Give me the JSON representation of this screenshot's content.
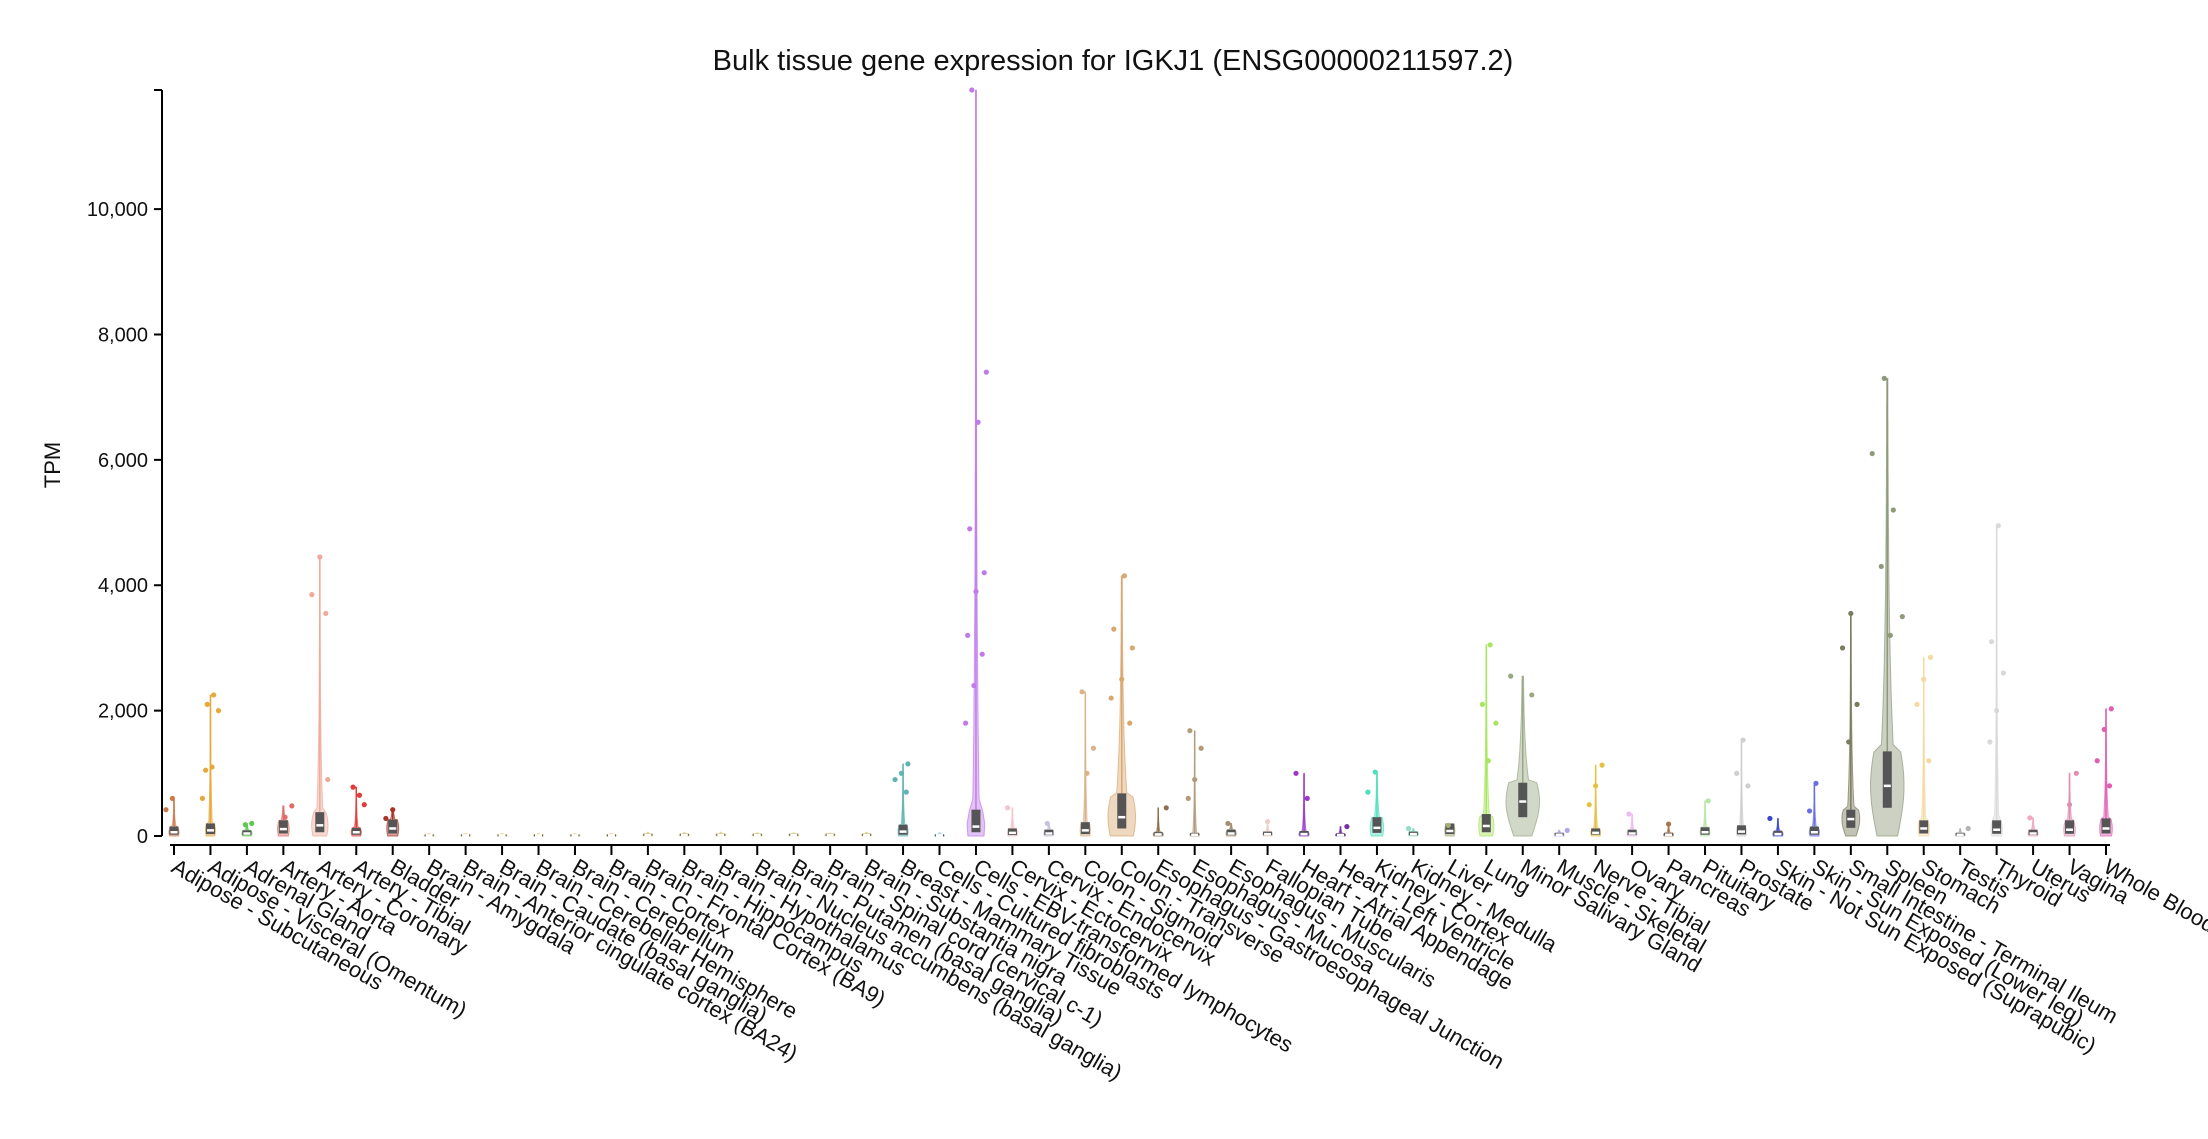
{
  "chart_data": {
    "type": "violin",
    "title": "Bulk tissue gene expression for IGKJ1 (ENSG00000211597.2)",
    "ylabel": "TPM",
    "xlabel": "",
    "ylim": [
      0,
      11900
    ],
    "yticks": [
      0,
      2000,
      4000,
      6000,
      8000,
      10000
    ],
    "ytick_labels": [
      "0",
      "2,000",
      "4,000",
      "6,000",
      "8,000",
      "10,000"
    ],
    "grid": false,
    "legend": "none",
    "categories": [
      "Adipose - Subcutaneous",
      "Adipose - Visceral (Omentum)",
      "Adrenal Gland",
      "Artery - Aorta",
      "Artery - Coronary",
      "Artery - Tibial",
      "Bladder",
      "Brain - Amygdala",
      "Brain - Anterior cingulate cortex (BA24)",
      "Brain - Caudate (basal ganglia)",
      "Brain - Cerebellar Hemisphere",
      "Brain - Cerebellum",
      "Brain - Cortex",
      "Brain - Frontal Cortex (BA9)",
      "Brain - Hippocampus",
      "Brain - Hypothalamus",
      "Brain - Nucleus accumbens (basal ganglia)",
      "Brain - Putamen (basal ganglia)",
      "Brain - Spinal cord (cervical c-1)",
      "Brain - Substantia nigra",
      "Breast - Mammary Tissue",
      "Cells - Cultured fibroblasts",
      "Cells - EBV-transformed lymphocytes",
      "Cervix - Ectocervix",
      "Cervix - Endocervix",
      "Colon - Sigmoid",
      "Colon - Transverse",
      "Esophagus - Gastroesophageal Junction",
      "Esophagus - Mucosa",
      "Esophagus - Muscularis",
      "Fallopian Tube",
      "Heart - Atrial Appendage",
      "Heart - Left Ventricle",
      "Kidney - Cortex",
      "Kidney - Medulla",
      "Liver",
      "Lung",
      "Minor Salivary Gland",
      "Muscle - Skeletal",
      "Nerve - Tibial",
      "Ovary",
      "Pancreas",
      "Pituitary",
      "Prostate",
      "Skin - Not Sun Exposed (Suprapubic)",
      "Skin - Sun Exposed (Lower leg)",
      "Small Intestine - Terminal Ileum",
      "Spleen",
      "Stomach",
      "Testis",
      "Thyroid",
      "Uterus",
      "Vagina",
      "Whole Blood"
    ],
    "colors": [
      "#cc7a4d",
      "#e6a83a",
      "#5cc84f",
      "#e06b6b",
      "#eeaa99",
      "#e03c3c",
      "#a83228",
      "#e6d27a",
      "#e6d27a",
      "#e6d27a",
      "#e6d27a",
      "#e6d27a",
      "#e6d27a",
      "#e6d27a",
      "#e6d27a",
      "#e6d27a",
      "#e6d27a",
      "#e6d27a",
      "#e6d27a",
      "#e6d27a",
      "#5fb3b3",
      "#8ecfe6",
      "#c07be8",
      "#f2c4cc",
      "#c9c0e6",
      "#d9b48a",
      "#d9a870",
      "#8f6f4d",
      "#b39b7a",
      "#a38e6e",
      "#eecfc4",
      "#9b38c9",
      "#7a2fa6",
      "#4ee0bd",
      "#8fe0c4",
      "#a8b07a",
      "#a8e65f",
      "#9aa885",
      "#b3a6ea",
      "#e6c043",
      "#f0b8f0",
      "#a8754d",
      "#b8e6a8",
      "#cfcfcf",
      "#3a46c9",
      "#6b6fe6",
      "#7a7a5c",
      "#8f9a7a",
      "#f5d9a0",
      "#b3b3b3",
      "#d9d9d9",
      "#f0a8c4",
      "#e08fb3",
      "#e05fb3"
    ],
    "median": [
      60,
      90,
      40,
      110,
      170,
      60,
      120,
      10,
      10,
      10,
      10,
      10,
      10,
      15,
      15,
      15,
      15,
      15,
      15,
      15,
      70,
      10,
      150,
      50,
      40,
      90,
      300,
      25,
      20,
      40,
      30,
      30,
      15,
      130,
      30,
      80,
      160,
      550,
      20,
      50,
      40,
      20,
      60,
      70,
      30,
      60,
      270,
      800,
      120,
      20,
      100,
      40,
      100,
      120
    ],
    "q1": [
      20,
      30,
      15,
      40,
      60,
      20,
      40,
      3,
      3,
      3,
      3,
      3,
      3,
      5,
      5,
      5,
      5,
      5,
      5,
      5,
      20,
      3,
      60,
      15,
      15,
      30,
      120,
      10,
      8,
      15,
      10,
      10,
      5,
      50,
      10,
      30,
      60,
      300,
      8,
      20,
      15,
      8,
      20,
      25,
      10,
      20,
      130,
      450,
      40,
      8,
      35,
      15,
      35,
      40
    ],
    "q3": [
      150,
      200,
      90,
      250,
      380,
      130,
      260,
      25,
      25,
      25,
      25,
      25,
      25,
      35,
      35,
      35,
      35,
      35,
      35,
      35,
      180,
      25,
      420,
      120,
      100,
      220,
      680,
      60,
      50,
      100,
      70,
      80,
      40,
      300,
      70,
      200,
      350,
      850,
      50,
      120,
      100,
      50,
      140,
      170,
      80,
      150,
      420,
      1350,
      250,
      50,
      250,
      100,
      250,
      280
    ],
    "max": [
      600,
      2250,
      200,
      480,
      4450,
      780,
      420,
      40,
      40,
      40,
      40,
      40,
      40,
      60,
      55,
      60,
      50,
      50,
      45,
      60,
      1150,
      50,
      11900,
      450,
      200,
      2300,
      4150,
      450,
      1680,
      200,
      230,
      1000,
      150,
      1020,
      120,
      170,
      3050,
      2550,
      90,
      1130,
      350,
      190,
      560,
      1530,
      280,
      840,
      3550,
      7300,
      2850,
      120,
      4950,
      290,
      1000,
      2030
    ],
    "outliers": [
      [
        420,
        600
      ],
      [
        1050,
        1100,
        2000,
        2100,
        2250,
        600
      ],
      [
        180,
        200
      ],
      [
        300,
        480
      ],
      [
        3550,
        3850,
        4450,
        900
      ],
      [
        500,
        780,
        650
      ],
      [
        280,
        420
      ],
      [],
      [],
      [],
      [],
      [],
      [],
      [],
      [],
      [],
      [],
      [],
      [],
      [],
      [
        700,
        900,
        1000,
        1150
      ],
      [],
      [
        1800,
        2400,
        2900,
        3200,
        3900,
        4200,
        4900,
        6600,
        7400,
        11900
      ],
      [
        450
      ],
      [
        200
      ],
      [
        1000,
        1400,
        2300
      ],
      [
        1800,
        2200,
        2500,
        3000,
        3300,
        4150
      ],
      [
        450
      ],
      [
        600,
        900,
        1400,
        1680
      ],
      [
        200
      ],
      [
        230
      ],
      [
        600,
        1000
      ],
      [
        150
      ],
      [
        700,
        1020
      ],
      [
        120
      ],
      [
        170
      ],
      [
        1200,
        1800,
        2100,
        3050
      ],
      [
        2250,
        2550
      ],
      [
        90
      ],
      [
        500,
        800,
        1130
      ],
      [
        350
      ],
      [
        190
      ],
      [
        560
      ],
      [
        800,
        1000,
        1530
      ],
      [
        280
      ],
      [
        400,
        840
      ],
      [
        1500,
        2100,
        3000,
        3550
      ],
      [
        3200,
        3500,
        4300,
        5200,
        6100,
        7300
      ],
      [
        1200,
        2100,
        2500,
        2850
      ],
      [
        120
      ],
      [
        1500,
        2000,
        2600,
        3100,
        4950
      ],
      [
        290
      ],
      [
        500,
        1000
      ],
      [
        800,
        1200,
        1700,
        2030
      ]
    ]
  }
}
